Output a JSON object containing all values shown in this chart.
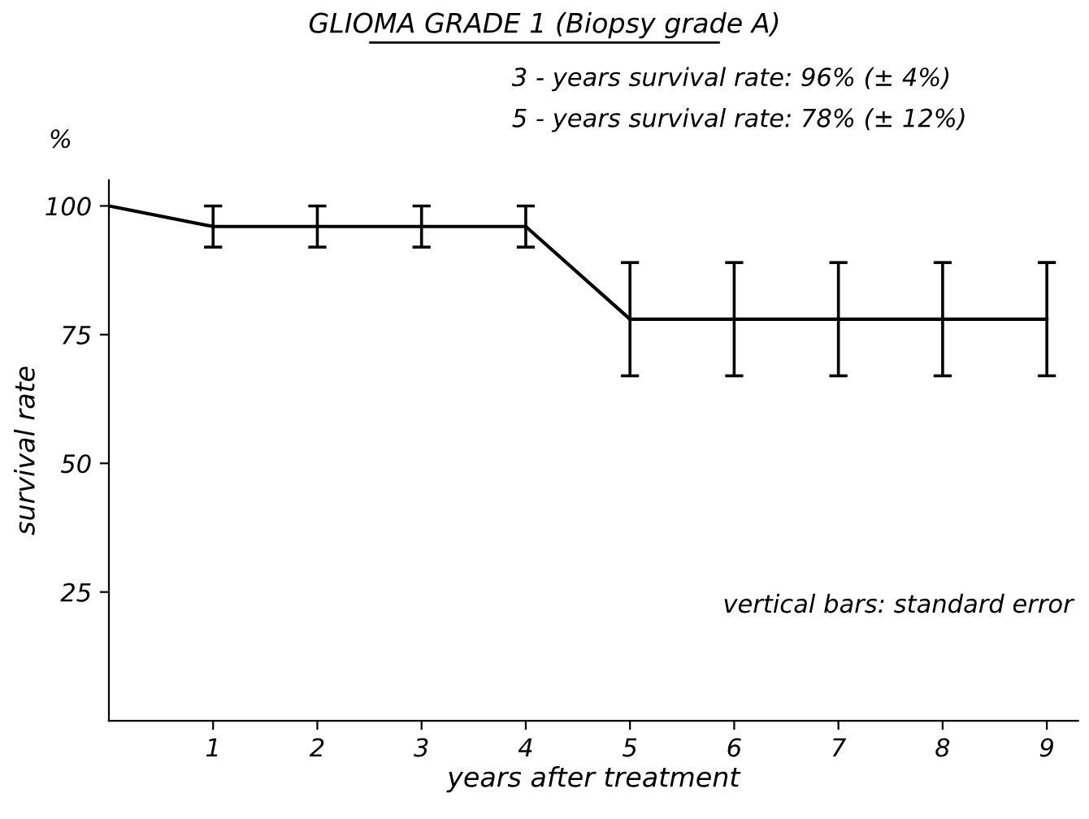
{
  "chart_data": {
    "type": "line",
    "title": "GLIOMA GRADE 1 (Biopsy grade A)",
    "xlabel": "years after treatment",
    "ylabel": "survival rate",
    "annotations": [
      "3 - years survival rate: 96% (± 4%)",
      "5 - years survival rate: 78% (± 12%)",
      "%",
      "vertical bars: standard error"
    ],
    "x": [
      0,
      1,
      2,
      3,
      4,
      5,
      6,
      7,
      8,
      9
    ],
    "series": [
      {
        "color": "#000000",
        "values": [
          100,
          96,
          96,
          96,
          96,
          78,
          78,
          78,
          78,
          78
        ],
        "errors": [
          null,
          4,
          4,
          4,
          4,
          11,
          11,
          11,
          11,
          11
        ]
      }
    ],
    "xlim": [
      0,
      9.3
    ],
    "xticks": [
      1,
      2,
      3,
      4,
      5,
      6,
      7,
      8,
      9
    ],
    "ylim": [
      0,
      105
    ],
    "yticks": [
      25,
      50,
      75,
      100
    ],
    "grid": false,
    "legend": false,
    "marker": "none",
    "line_style": "solid"
  }
}
